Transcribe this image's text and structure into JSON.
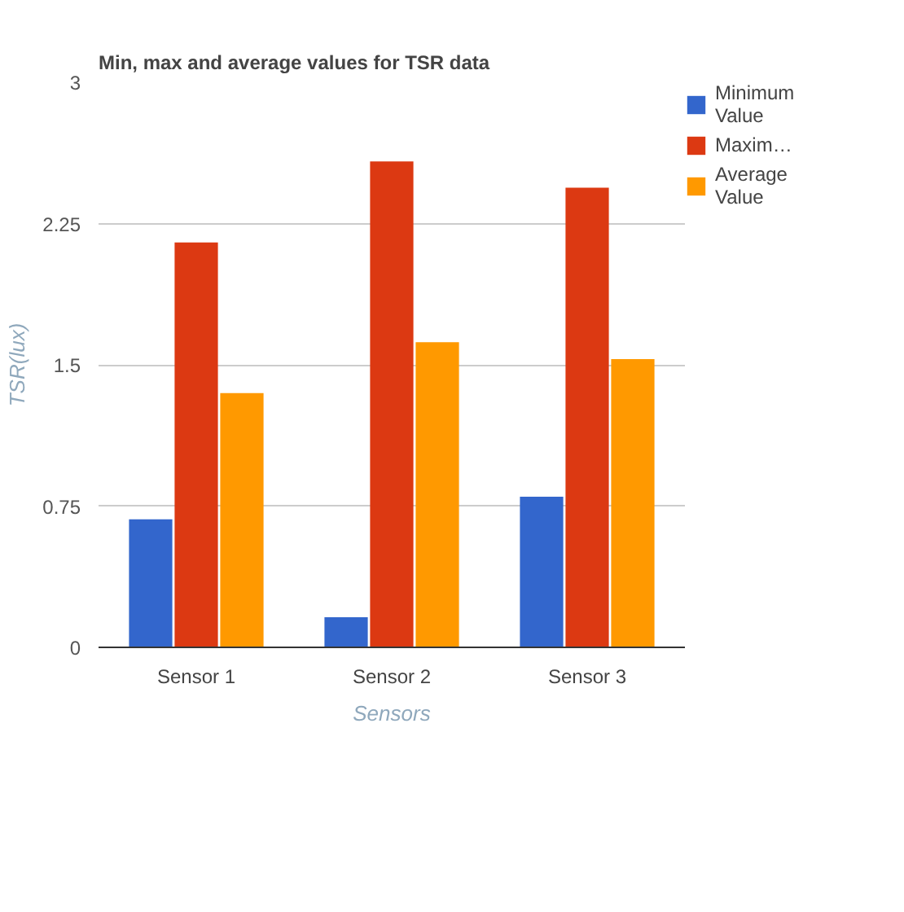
{
  "chart_data": {
    "type": "bar",
    "title": "Min, max and average values for TSR data",
    "xlabel": "Sensors",
    "ylabel": "TSR(lux)",
    "categories": [
      "Sensor 1",
      "Sensor 2",
      "Sensor 3"
    ],
    "series": [
      {
        "name": "Minimum Value",
        "color": "#3366cc",
        "values": [
          0.68,
          0.16,
          0.8
        ]
      },
      {
        "name": "Maxim…",
        "color": "#dc3912",
        "values": [
          2.15,
          2.58,
          2.44
        ]
      },
      {
        "name": "Average Value",
        "color": "#ff9900",
        "values": [
          1.35,
          1.62,
          1.53
        ]
      }
    ],
    "ylim": [
      0,
      3
    ],
    "yticks": [
      0,
      {
        "value": 0.75,
        "label": "0.75"
      },
      {
        "value": 1.5,
        "label": "1.5"
      },
      {
        "value": 2.25,
        "label": "2.25"
      },
      3
    ],
    "grid": "y",
    "legend": "right"
  }
}
